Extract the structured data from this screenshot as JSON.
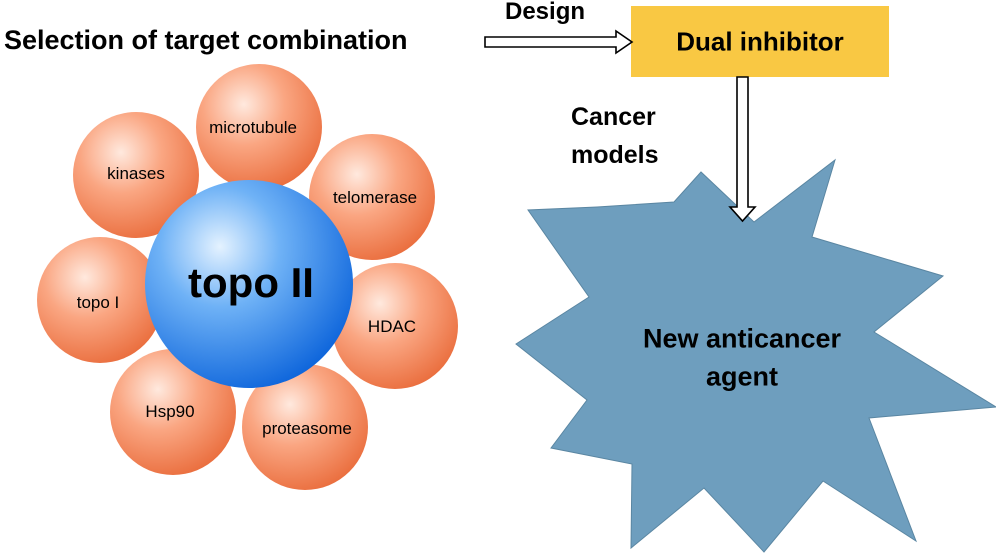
{
  "heading": "Selection of target combination",
  "design_label": "Design",
  "dual_inhibitor": {
    "label": "Dual inhibitor",
    "color": "#F9C843"
  },
  "cancer_models_label": [
    "Cancer",
    "models"
  ],
  "new_agent": {
    "lines": [
      "New anticancer",
      "agent"
    ],
    "color": "#6E9EBE"
  },
  "center_target": {
    "label": "topo II",
    "color": "#3E8CE8"
  },
  "targets": {
    "color": "#F79B76",
    "items": [
      {
        "label": "microtubule"
      },
      {
        "label": "telomerase"
      },
      {
        "label": "HDAC"
      },
      {
        "label": "proteasome"
      },
      {
        "label": "Hsp90"
      },
      {
        "label": "topo I"
      },
      {
        "label": "kinases"
      }
    ]
  }
}
